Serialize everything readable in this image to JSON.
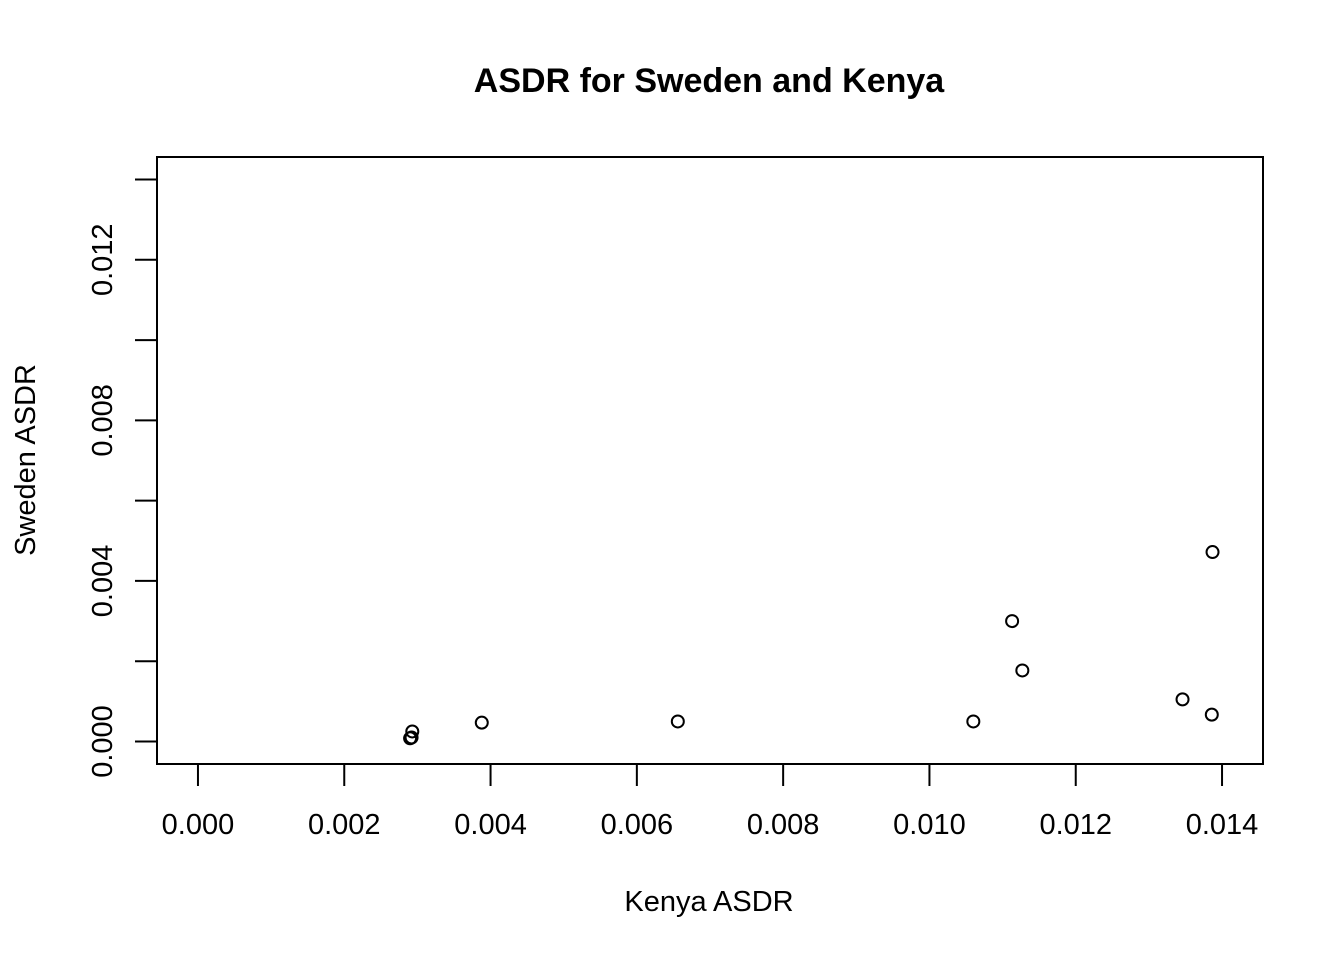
{
  "chart_data": {
    "type": "scatter",
    "title": "ASDR for Sweden and Kenya",
    "xlabel": "Kenya ASDR",
    "ylabel": "Sweden ASDR",
    "xlim": [
      -0.00056,
      0.01456
    ],
    "ylim": [
      -0.00056,
      0.01456
    ],
    "x_ticks": [
      0.0,
      0.002,
      0.004,
      0.006,
      0.008,
      0.01,
      0.012,
      0.014
    ],
    "x_tick_labels": [
      "0.000",
      "0.002",
      "0.004",
      "0.006",
      "0.008",
      "0.010",
      "0.012",
      "0.014"
    ],
    "y_ticks": [
      0.0,
      0.002,
      0.004,
      0.006,
      0.008,
      0.01,
      0.012,
      0.014
    ],
    "y_labeled_ticks": [
      0.0,
      0.004,
      0.008,
      0.012
    ],
    "y_tick_labels": [
      "0.000",
      "0.004",
      "0.008",
      "0.012"
    ],
    "grid": false,
    "legend": "none",
    "point_shape": "open-circle",
    "points": [
      {
        "x": 0.00292,
        "y": 0.0001
      },
      {
        "x": 0.0029,
        "y": 8e-05
      },
      {
        "x": 0.00293,
        "y": 0.00025
      },
      {
        "x": 0.00388,
        "y": 0.00047
      },
      {
        "x": 0.00656,
        "y": 0.0005
      },
      {
        "x": 0.0106,
        "y": 0.0005
      },
      {
        "x": 0.01113,
        "y": 0.003
      },
      {
        "x": 0.01127,
        "y": 0.00177
      },
      {
        "x": 0.01346,
        "y": 0.00105
      },
      {
        "x": 0.01386,
        "y": 0.00067
      },
      {
        "x": 0.01387,
        "y": 0.00472
      }
    ],
    "colors": {
      "axis": "#000000",
      "point": "#000000",
      "background": "#ffffff"
    }
  }
}
